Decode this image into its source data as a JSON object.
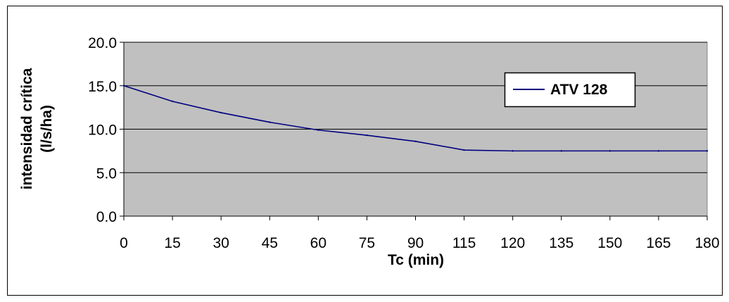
{
  "chart_data": {
    "type": "line",
    "title": "",
    "xlabel": "Tc (min)",
    "ylabel_lines": [
      "intensidad crítica",
      "(l/s/ha)"
    ],
    "categories": [
      "0",
      "15",
      "30",
      "45",
      "60",
      "75",
      "90",
      "115",
      "120",
      "135",
      "150",
      "165",
      "180"
    ],
    "ylim": [
      0,
      20
    ],
    "yticks": [
      "0.0",
      "5.0",
      "10.0",
      "15.0",
      "20.0"
    ],
    "grid": true,
    "legend_position": "top-right",
    "series": [
      {
        "name": "ATV 128",
        "color": "#000080",
        "values": [
          15.0,
          13.2,
          11.9,
          10.8,
          9.9,
          9.3,
          8.6,
          7.6,
          7.5,
          7.5,
          7.5,
          7.5,
          7.5
        ]
      }
    ],
    "colors": {
      "plot_background": "#c0c0c0",
      "gridline": "#000000"
    }
  }
}
